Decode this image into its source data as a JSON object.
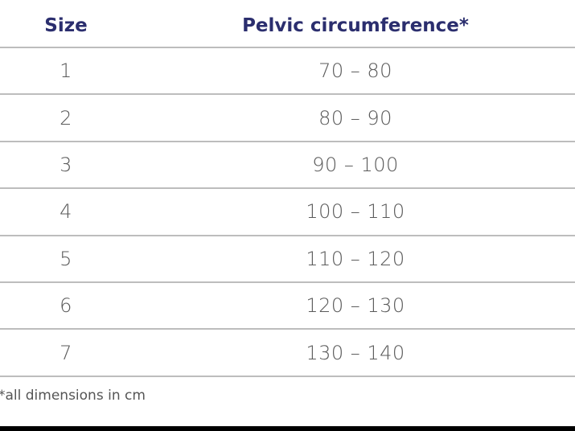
{
  "table": {
    "header": [
      "Size",
      "Pelvic circumference*"
    ],
    "rows": [
      [
        "1",
        "70 – 80"
      ],
      [
        "2",
        "80 – 90"
      ],
      [
        "3",
        "90 – 100"
      ],
      [
        "4",
        "100 – 110"
      ],
      [
        "5",
        "110 – 120"
      ],
      [
        "6",
        "120 – 130"
      ],
      [
        "7",
        "130 – 140"
      ]
    ]
  },
  "footnote": "*all dimensions in cm"
}
